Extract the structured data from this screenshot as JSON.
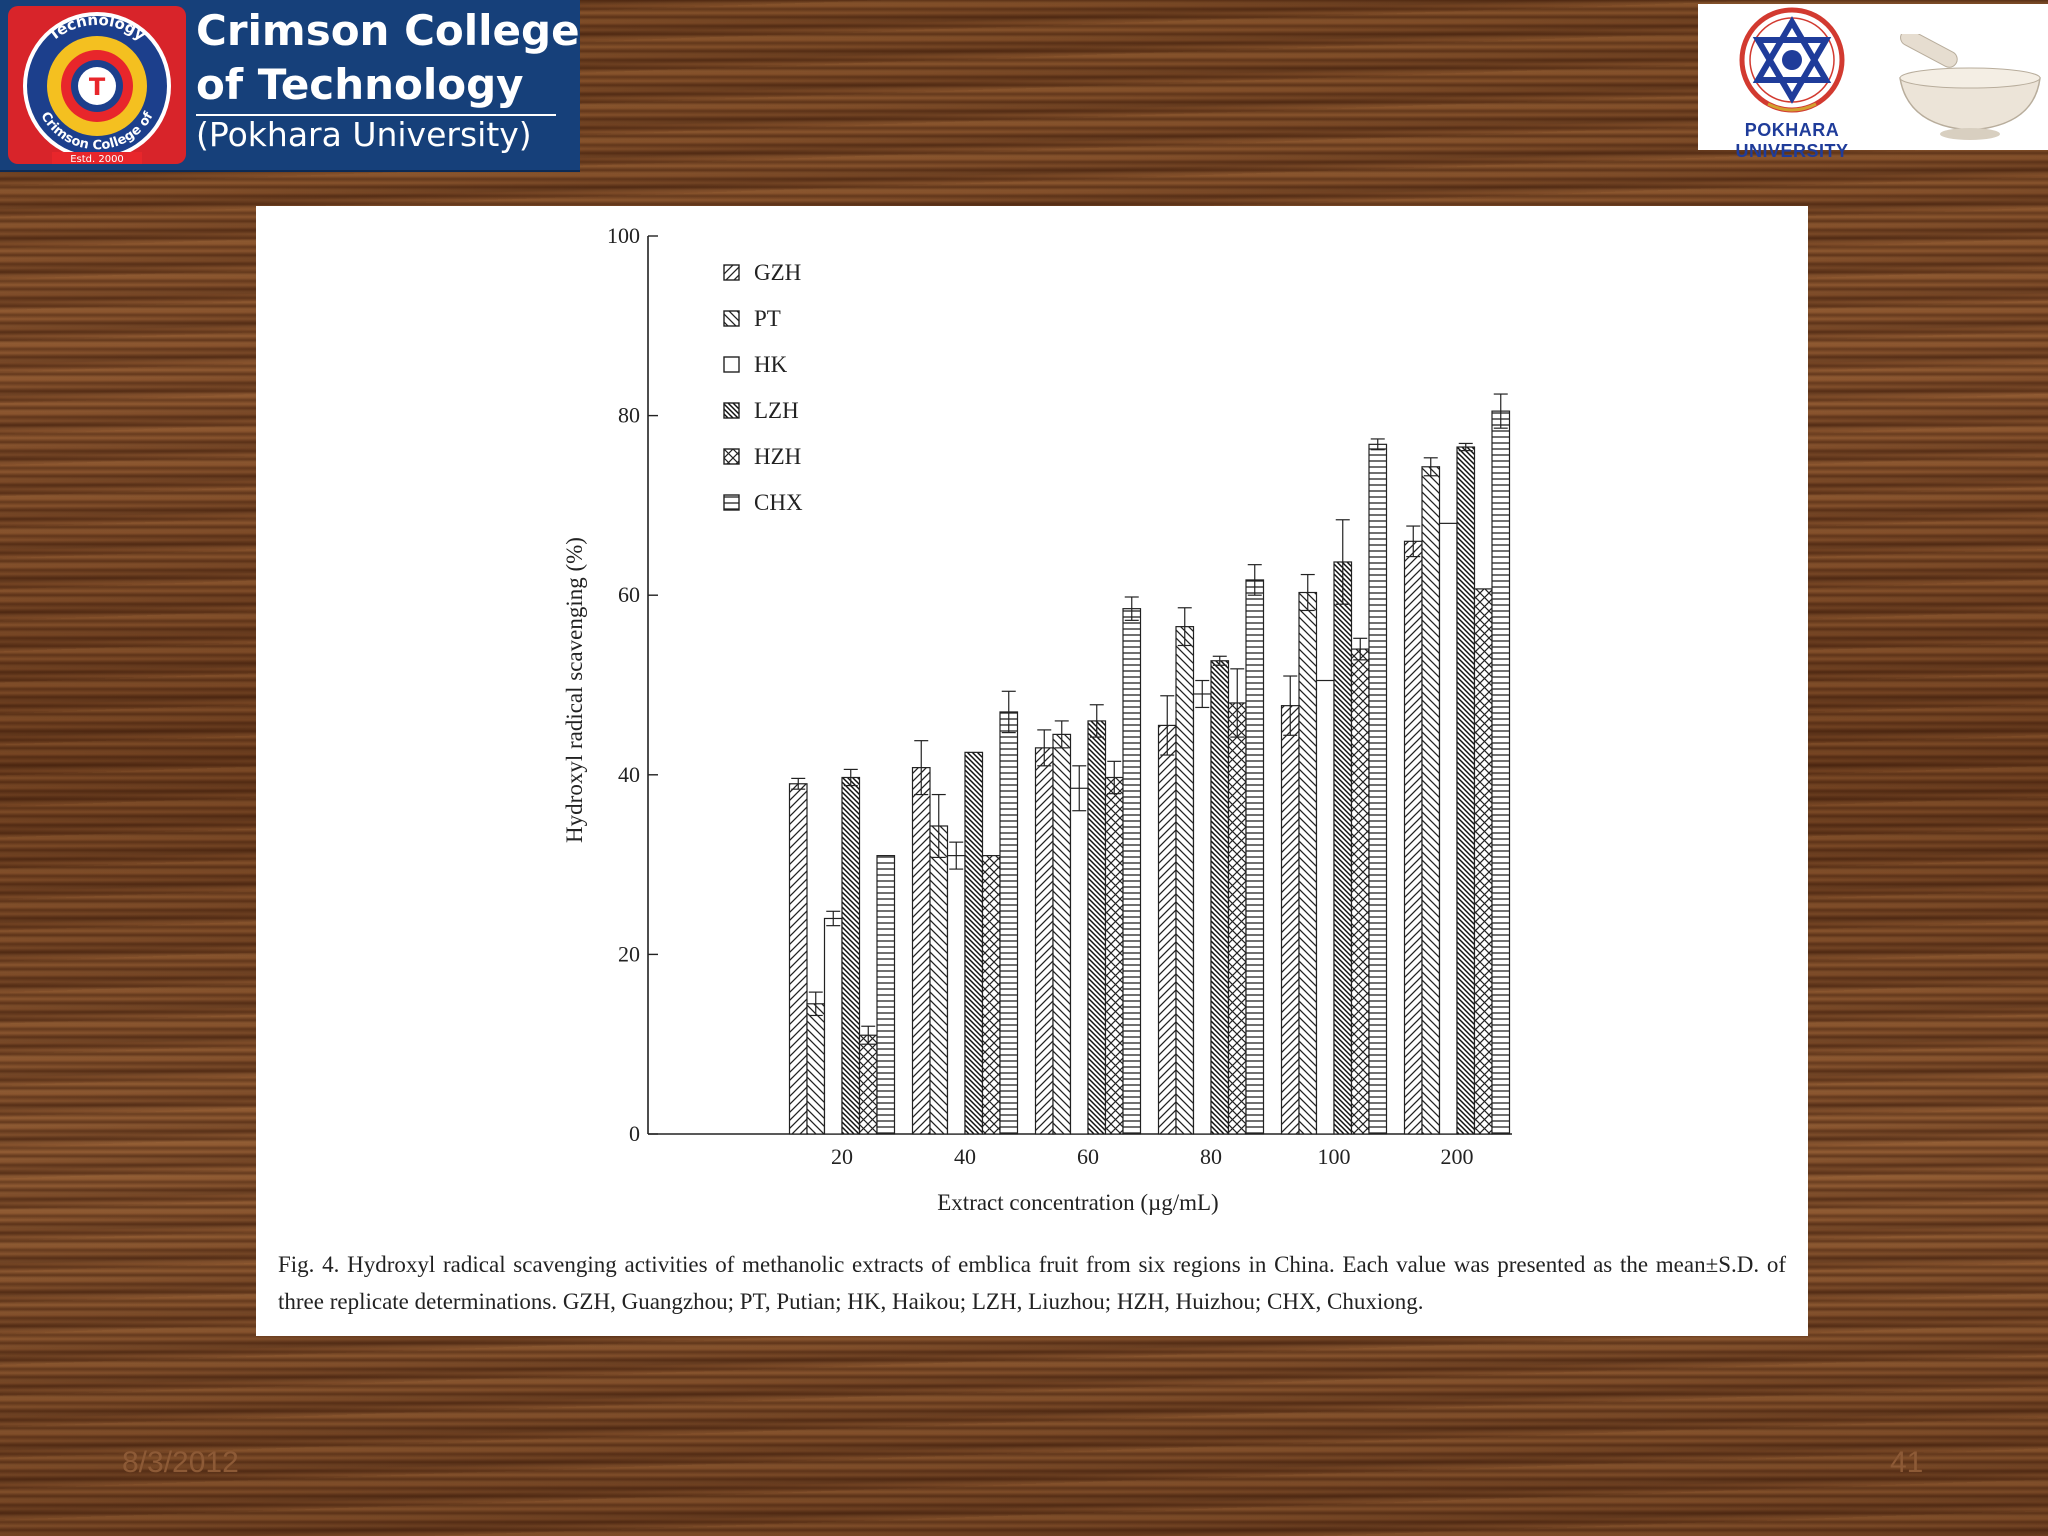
{
  "header": {
    "college_line1": "Crimson College",
    "college_line2": "of Technology",
    "college_line3": "(Pokhara University)",
    "seal_top_text": "Technology",
    "seal_bottom_text": "Crimson College of",
    "seal_estd": "Estd. 2000",
    "university_label": "POKHARA UNIVERSITY"
  },
  "colors": {
    "header_bg": "#16407a",
    "seal_red": "#d8242a",
    "university_blue": "#1f3c9a"
  },
  "chart_data": {
    "type": "bar",
    "xlabel": "Extract concentration (µg/mL)",
    "ylabel": "Hydroxyl radical scavenging (%)",
    "ylim": [
      0,
      100
    ],
    "yticks": [
      0,
      20,
      40,
      60,
      80,
      100
    ],
    "categories": [
      "20",
      "40",
      "60",
      "80",
      "100",
      "200"
    ],
    "legend_position": "top-left",
    "grid": false,
    "series": [
      {
        "name": "GZH",
        "pattern": "diag-right",
        "values": [
          39.0,
          40.8,
          43.0,
          45.5,
          47.7,
          66.0
        ],
        "errors": [
          0.6,
          3.0,
          2.0,
          3.3,
          3.3,
          1.7
        ]
      },
      {
        "name": "PT",
        "pattern": "diag-left",
        "values": [
          14.5,
          34.3,
          44.5,
          56.5,
          60.3,
          74.3
        ],
        "errors": [
          1.3,
          3.5,
          1.5,
          2.1,
          2.0,
          1.0
        ]
      },
      {
        "name": "HK",
        "pattern": "open",
        "values": [
          24.0,
          31.0,
          38.5,
          49.0,
          50.5,
          68.0
        ],
        "errors": [
          0.8,
          1.5,
          2.5,
          1.5,
          0,
          0
        ]
      },
      {
        "name": "LZH",
        "pattern": "dense-diag",
        "values": [
          39.7,
          42.5,
          46.0,
          52.7,
          63.7,
          76.5
        ],
        "errors": [
          0.9,
          0,
          1.8,
          0.5,
          4.7,
          0.4
        ]
      },
      {
        "name": "HZH",
        "pattern": "cross",
        "values": [
          11.0,
          31.0,
          39.7,
          48.0,
          54.0,
          60.7
        ],
        "errors": [
          1.0,
          0,
          1.8,
          3.8,
          1.2,
          0
        ]
      },
      {
        "name": "CHX",
        "pattern": "horizontal",
        "values": [
          31.0,
          47.0,
          58.5,
          61.7,
          76.8,
          80.5
        ],
        "errors": [
          0,
          2.3,
          1.3,
          1.7,
          0.6,
          1.9
        ]
      }
    ]
  },
  "caption": "Fig. 4. Hydroxyl radical scavenging activities of methanolic extracts of emblica fruit from six regions in China. Each value was presented as the mean±S.D. of three replicate determinations. GZH, Guangzhou; PT, Putian; HK, Haikou; LZH, Liuzhou; HZH, Huizhou; CHX, Chuxiong.",
  "footer": {
    "date": "8/3/2012",
    "page": "41"
  }
}
